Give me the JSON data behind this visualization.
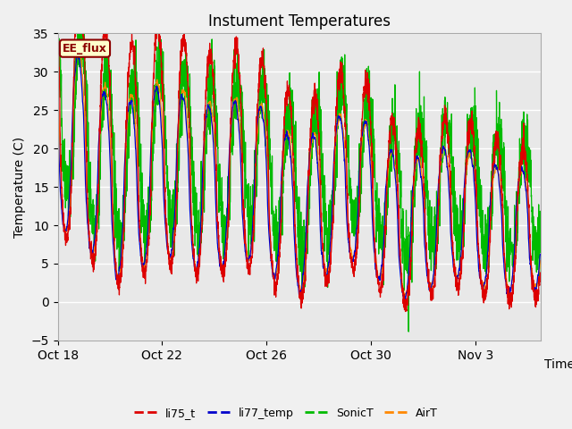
{
  "title": "Instument Temperatures",
  "xlabel": "Time",
  "ylabel": "Temperature (C)",
  "ylim": [
    -5,
    35
  ],
  "yticks": [
    -5,
    0,
    5,
    10,
    15,
    20,
    25,
    30,
    35
  ],
  "background_color": "#e8e8e8",
  "figure_color": "#f0f0f0",
  "annotation_text": "EE_flux",
  "annotation_color": "#8b0000",
  "annotation_bg": "#ffffcc",
  "lines": {
    "li75_t": {
      "color": "#dd0000",
      "linewidth": 0.9
    },
    "li77_temp": {
      "color": "#0000cc",
      "linewidth": 0.9
    },
    "SonicT": {
      "color": "#00bb00",
      "linewidth": 0.9
    },
    "AirT": {
      "color": "#ff8800",
      "linewidth": 0.9
    }
  },
  "xtick_labels": [
    "Oct 18",
    "Oct 22",
    "Oct 26",
    "Oct 30",
    "Nov 3"
  ],
  "xtick_positions": [
    0,
    4,
    8,
    12,
    16
  ],
  "legend_labels": [
    "li75_t",
    "li77_temp",
    "SonicT",
    "AirT"
  ],
  "legend_colors": [
    "#dd0000",
    "#0000cc",
    "#00bb00",
    "#ff8800"
  ],
  "total_days": 18.5,
  "n_points": 3000
}
